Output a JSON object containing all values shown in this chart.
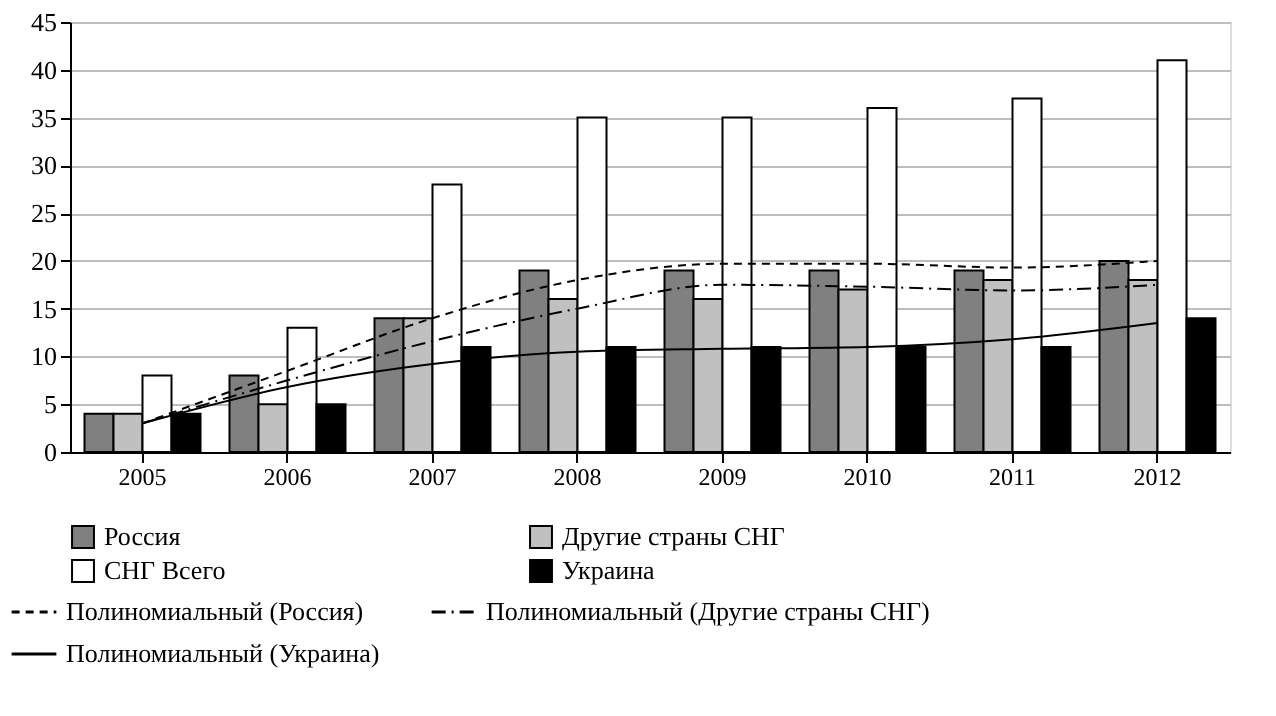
{
  "chart_data": {
    "type": "bar",
    "categories": [
      "2005",
      "2006",
      "2007",
      "2008",
      "2009",
      "2010",
      "2011",
      "2012"
    ],
    "ylim": [
      0,
      45
    ],
    "yticks": [
      0,
      5,
      10,
      15,
      20,
      25,
      30,
      35,
      40,
      45
    ],
    "grid": "y",
    "legend": "bottom",
    "series": [
      {
        "name": "Россия",
        "color": "#808080",
        "values": [
          4,
          8,
          14,
          19,
          19,
          19,
          19,
          20
        ]
      },
      {
        "name": "Другие страны СНГ",
        "color": "#c0c0c0",
        "values": [
          4,
          5,
          14,
          16,
          16,
          17,
          18,
          18
        ]
      },
      {
        "name": "СНГ Всего",
        "color": "#ffffff",
        "values": [
          8,
          13,
          28,
          35,
          35,
          36,
          37,
          41
        ]
      },
      {
        "name": "Украина",
        "color": "#000000",
        "values": [
          4,
          5,
          11,
          11,
          11,
          11,
          11,
          14
        ]
      },
      {
        "name": "Полиномиальный (Россия)",
        "type": "line",
        "line_style": "dashed",
        "color": "#000000",
        "values": [
          3,
          8.5,
          14,
          18,
          19.7,
          19.7,
          19.3,
          20
        ]
      },
      {
        "name": "Полиномиальный (Украина)",
        "type": "line",
        "line_style": "solid",
        "color": "#000000",
        "values": [
          3,
          6.8,
          9.2,
          10.5,
          10.8,
          11,
          11.8,
          13.5
        ]
      },
      {
        "name": "Полиномиальный (Другие страны СНГ)",
        "type": "line",
        "line_style": "dashdot",
        "color": "#000000",
        "values": [
          3,
          7.5,
          11.6,
          15,
          17.5,
          17.3,
          16.9,
          17.5
        ]
      }
    ]
  }
}
